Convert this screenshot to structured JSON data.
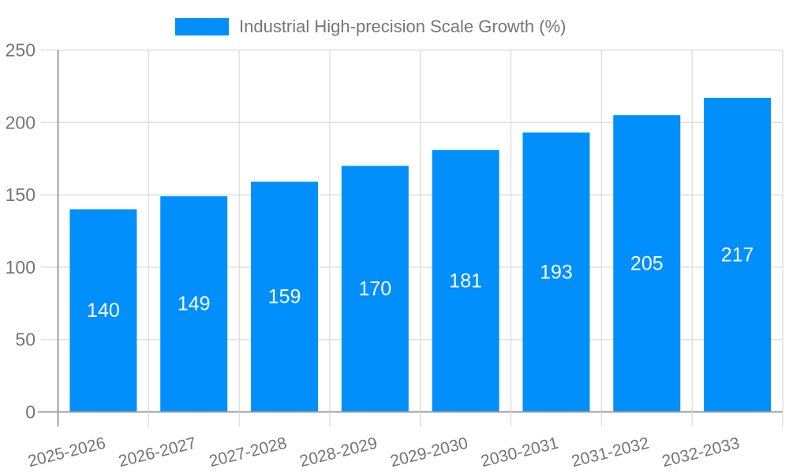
{
  "legend": {
    "position": "top-center"
  },
  "colors": {
    "bar": "#008FFB",
    "grid": "#e0e0e0",
    "axis": "#9e9e9e",
    "axis_text": "#757575",
    "value_label": "#ffffff",
    "background": "#ffffff"
  },
  "chart_data": {
    "type": "bar",
    "title": "",
    "series_name": "Industrial High-precision Scale Growth (%)",
    "categories": [
      "2025-2026",
      "2026-2027",
      "2027-2028",
      "2028-2029",
      "2029-2030",
      "2030-2031",
      "2031-2032",
      "2032-2033"
    ],
    "values": [
      140,
      149,
      159,
      170,
      181,
      193,
      205,
      217
    ],
    "xlabel": "",
    "ylabel": "",
    "ylim": [
      0,
      250
    ],
    "yticks": [
      0,
      50,
      100,
      150,
      200,
      250
    ],
    "grid": true,
    "legend_position": "top",
    "value_label_position": "inside-center",
    "x_label_rotation_deg": -14
  }
}
